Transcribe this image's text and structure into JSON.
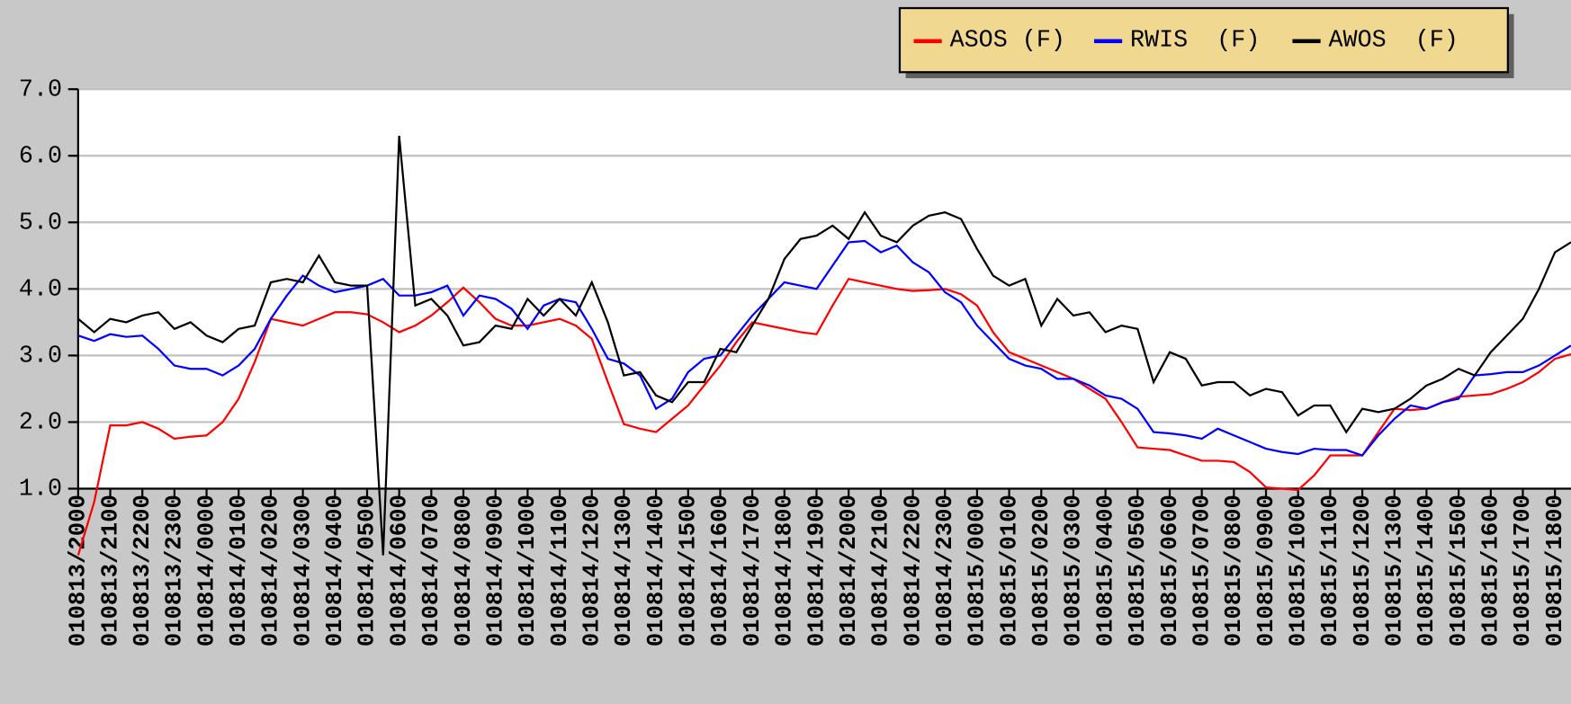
{
  "chart_data": {
    "type": "line",
    "x": [
      0,
      0.5,
      1,
      1.5,
      2,
      2.5,
      3,
      3.5,
      4,
      4.5,
      5,
      5.5,
      6,
      6.5,
      7,
      7.5,
      8,
      8.5,
      9,
      9.5,
      10,
      10.5,
      11,
      11.5,
      12,
      12.5,
      13,
      13.5,
      14,
      14.5,
      15,
      15.5,
      16,
      16.5,
      17,
      17.5,
      18,
      18.5,
      19,
      19.5,
      20,
      20.5,
      21,
      21.5,
      22,
      22.5,
      23,
      23.5,
      24,
      24.5,
      25,
      25.5,
      26,
      26.5,
      27,
      27.5,
      28,
      28.5,
      29,
      29.5,
      30,
      30.5,
      31,
      31.5,
      32,
      32.5,
      33,
      33.5,
      34,
      34.5,
      35,
      35.5,
      36,
      36.5,
      37,
      37.5,
      38,
      38.5,
      39,
      39.5,
      40,
      40.5,
      41,
      41.5,
      42,
      42.5,
      43,
      43.5,
      44,
      44.5,
      45,
      45.5,
      46,
      46.5
    ],
    "series": [
      {
        "name": "ASOS (F)",
        "color": "#ff0000",
        "values": [
          0.0,
          0.8,
          1.95,
          1.95,
          2.0,
          1.9,
          1.75,
          1.78,
          1.8,
          2.0,
          2.35,
          2.9,
          3.55,
          3.5,
          3.45,
          3.55,
          3.65,
          3.65,
          3.62,
          3.5,
          3.35,
          3.45,
          3.6,
          3.8,
          4.02,
          3.8,
          3.55,
          3.45,
          3.45,
          3.5,
          3.55,
          3.45,
          3.25,
          2.6,
          1.97,
          1.9,
          1.85,
          2.05,
          2.25,
          2.55,
          2.85,
          3.2,
          3.5,
          3.45,
          3.4,
          3.35,
          3.32,
          3.75,
          4.15,
          4.1,
          4.05,
          4.0,
          3.97,
          3.98,
          4.0,
          3.92,
          3.75,
          3.35,
          3.05,
          2.95,
          2.85,
          2.75,
          2.65,
          2.5,
          2.35,
          2.0,
          1.62,
          1.6,
          1.58,
          1.5,
          1.42,
          1.42,
          1.4,
          1.25,
          1.02,
          1.0,
          0.98,
          1.2,
          1.5,
          1.5,
          1.5,
          1.85,
          2.2,
          2.18,
          2.2,
          2.3,
          2.38,
          2.4,
          2.42,
          2.5,
          2.6,
          2.75,
          2.95,
          3.02
        ]
      },
      {
        "name": "RWIS  (F)",
        "color": "#0000ff",
        "values": [
          3.3,
          3.22,
          3.32,
          3.28,
          3.3,
          3.1,
          2.85,
          2.8,
          2.8,
          2.7,
          2.85,
          3.1,
          3.55,
          3.9,
          4.2,
          4.05,
          3.95,
          4.0,
          4.05,
          4.15,
          3.9,
          3.9,
          3.95,
          4.05,
          3.6,
          3.9,
          3.85,
          3.7,
          3.4,
          3.75,
          3.85,
          3.8,
          3.4,
          2.95,
          2.88,
          2.7,
          2.2,
          2.35,
          2.75,
          2.95,
          3.0,
          3.3,
          3.6,
          3.85,
          4.1,
          4.05,
          4.0,
          4.35,
          4.7,
          4.72,
          4.55,
          4.65,
          4.4,
          4.25,
          3.95,
          3.8,
          3.45,
          3.2,
          2.95,
          2.85,
          2.8,
          2.65,
          2.65,
          2.55,
          2.4,
          2.35,
          2.2,
          1.85,
          1.83,
          1.8,
          1.75,
          1.9,
          1.8,
          1.7,
          1.6,
          1.55,
          1.52,
          1.6,
          1.58,
          1.58,
          1.5,
          1.8,
          2.05,
          2.25,
          2.2,
          2.3,
          2.35,
          2.7,
          2.72,
          2.75,
          2.75,
          2.85,
          3.0,
          3.15
        ]
      },
      {
        "name": "AWOS  (F)",
        "color": "#000000",
        "values": [
          3.55,
          3.35,
          3.55,
          3.5,
          3.6,
          3.65,
          3.4,
          3.5,
          3.3,
          3.2,
          3.4,
          3.45,
          4.1,
          4.15,
          4.1,
          4.5,
          4.1,
          4.05,
          4.05,
          0.0,
          6.3,
          3.75,
          3.85,
          3.6,
          3.15,
          3.2,
          3.45,
          3.4,
          3.85,
          3.6,
          3.85,
          3.6,
          4.1,
          3.5,
          2.7,
          2.75,
          2.4,
          2.3,
          2.6,
          2.6,
          3.1,
          3.05,
          3.45,
          3.85,
          4.45,
          4.75,
          4.8,
          4.95,
          4.75,
          5.15,
          4.8,
          4.7,
          4.95,
          5.1,
          5.15,
          5.05,
          4.6,
          4.2,
          4.05,
          4.15,
          3.45,
          3.85,
          3.6,
          3.65,
          3.35,
          3.45,
          3.4,
          2.6,
          3.05,
          2.95,
          2.55,
          2.6,
          2.6,
          2.4,
          2.5,
          2.45,
          2.1,
          2.25,
          2.25,
          1.85,
          2.2,
          2.15,
          2.2,
          2.35,
          2.55,
          2.65,
          2.8,
          2.7,
          3.05,
          3.3,
          3.55,
          4.0,
          4.55,
          4.7
        ]
      }
    ],
    "xlim": [
      0,
      46.5
    ],
    "xticks": [
      {
        "value": 0,
        "label": "010813/2000"
      },
      {
        "value": 1,
        "label": "010813/2100"
      },
      {
        "value": 2,
        "label": "010813/2200"
      },
      {
        "value": 3,
        "label": "010813/2300"
      },
      {
        "value": 4,
        "label": "010814/0000"
      },
      {
        "value": 5,
        "label": "010814/0100"
      },
      {
        "value": 6,
        "label": "010814/0200"
      },
      {
        "value": 7,
        "label": "010814/0300"
      },
      {
        "value": 8,
        "label": "010814/0400"
      },
      {
        "value": 9,
        "label": "010814/0500"
      },
      {
        "value": 10,
        "label": "010814/0600"
      },
      {
        "value": 11,
        "label": "010814/0700"
      },
      {
        "value": 12,
        "label": "010814/0800"
      },
      {
        "value": 13,
        "label": "010814/0900"
      },
      {
        "value": 14,
        "label": "010814/1000"
      },
      {
        "value": 15,
        "label": "010814/1100"
      },
      {
        "value": 16,
        "label": "010814/1200"
      },
      {
        "value": 17,
        "label": "010814/1300"
      },
      {
        "value": 18,
        "label": "010814/1400"
      },
      {
        "value": 19,
        "label": "010814/1500"
      },
      {
        "value": 20,
        "label": "010814/1600"
      },
      {
        "value": 21,
        "label": "010814/1700"
      },
      {
        "value": 22,
        "label": "010814/1800"
      },
      {
        "value": 23,
        "label": "010814/1900"
      },
      {
        "value": 24,
        "label": "010814/2000"
      },
      {
        "value": 25,
        "label": "010814/2100"
      },
      {
        "value": 26,
        "label": "010814/2200"
      },
      {
        "value": 27,
        "label": "010814/2300"
      },
      {
        "value": 28,
        "label": "010815/0000"
      },
      {
        "value": 29,
        "label": "010815/0100"
      },
      {
        "value": 30,
        "label": "010815/0200"
      },
      {
        "value": 31,
        "label": "010815/0300"
      },
      {
        "value": 32,
        "label": "010815/0400"
      },
      {
        "value": 33,
        "label": "010815/0500"
      },
      {
        "value": 34,
        "label": "010815/0600"
      },
      {
        "value": 35,
        "label": "010815/0700"
      },
      {
        "value": 36,
        "label": "010815/0800"
      },
      {
        "value": 37,
        "label": "010815/0900"
      },
      {
        "value": 38,
        "label": "010815/1000"
      },
      {
        "value": 39,
        "label": "010815/1100"
      },
      {
        "value": 40,
        "label": "010815/1200"
      },
      {
        "value": 41,
        "label": "010815/1300"
      },
      {
        "value": 42,
        "label": "010815/1400"
      },
      {
        "value": 43,
        "label": "010815/1500"
      },
      {
        "value": 44,
        "label": "010815/1600"
      },
      {
        "value": 45,
        "label": "010815/1700"
      },
      {
        "value": 46,
        "label": "010815/1800"
      }
    ],
    "ylim": [
      1.0,
      7.0
    ],
    "yticks": [
      {
        "value": 1.0,
        "label": "1.0"
      },
      {
        "value": 2.0,
        "label": "2.0"
      },
      {
        "value": 3.0,
        "label": "3.0"
      },
      {
        "value": 4.0,
        "label": "4.0"
      },
      {
        "value": 5.0,
        "label": "5.0"
      },
      {
        "value": 6.0,
        "label": "6.0"
      },
      {
        "value": 7.0,
        "label": "7.0"
      }
    ],
    "grid": true,
    "legend": "top-right"
  }
}
